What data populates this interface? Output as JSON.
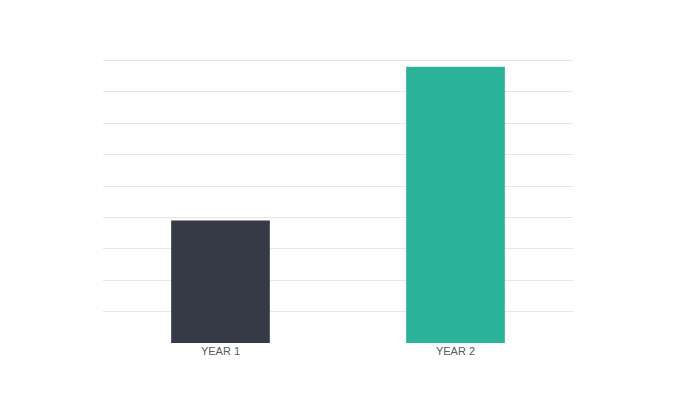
{
  "chart_data": {
    "type": "bar",
    "categories": [
      "YEAR 1",
      "YEAR 2"
    ],
    "values": [
      3.9,
      8.8
    ],
    "colors": [
      "#363a47",
      "#2bb39a"
    ],
    "ylim": [
      0,
      10
    ],
    "yticks": [
      0,
      1,
      2,
      3,
      4,
      5,
      6,
      7,
      8,
      9,
      10
    ],
    "grid": true,
    "tick_labels": "x"
  }
}
